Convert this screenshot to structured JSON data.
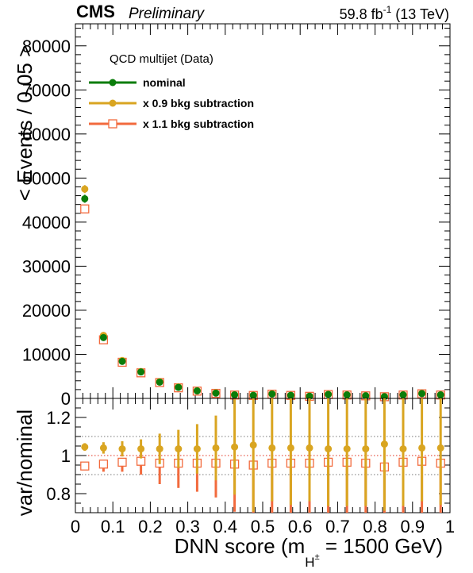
{
  "header": {
    "experiment": "CMS",
    "status": "Preliminary",
    "lumi": "59.8 fb",
    "lumi_exp": "-1",
    "energy": " (13 TeV)"
  },
  "legend": {
    "title": "QCD multijet (Data)",
    "entries": [
      "nominal",
      "x 0.9 bkg subtraction",
      "x 1.1 bkg subtraction"
    ]
  },
  "colors": {
    "nominal": "#0a7d0a",
    "down": "#d9a521",
    "up": "#f26a3d"
  },
  "chart_data": [
    {
      "type": "scatter",
      "panel": "main",
      "ylabel": "< Events / 0.05 >",
      "ylim": [
        0,
        85000
      ],
      "yticks": [
        0,
        10000,
        20000,
        30000,
        40000,
        50000,
        60000,
        70000,
        80000
      ],
      "x": [
        0.025,
        0.075,
        0.125,
        0.175,
        0.225,
        0.275,
        0.325,
        0.375,
        0.425,
        0.475,
        0.525,
        0.575,
        0.625,
        0.675,
        0.725,
        0.775,
        0.825,
        0.875,
        0.925,
        0.975
      ],
      "series": [
        {
          "name": "nominal",
          "values": [
            45300,
            13800,
            8400,
            6000,
            3700,
            2500,
            1700,
            1200,
            800,
            700,
            1000,
            700,
            500,
            900,
            800,
            600,
            400,
            800,
            1100,
            800
          ],
          "errors": [
            900,
            400,
            300,
            250,
            200,
            150,
            120,
            100,
            90,
            80,
            90,
            80,
            70,
            80,
            80,
            70,
            60,
            80,
            90,
            80
          ]
        },
        {
          "name": "x 0.9 bkg subtraction",
          "values": [
            47500,
            14300,
            8600,
            6100,
            3800,
            2600,
            1750,
            1250,
            850,
            730,
            1050,
            720,
            520,
            950,
            830,
            620,
            420,
            830,
            1150,
            830
          ],
          "errors": [
            900,
            400,
            300,
            250,
            200,
            150,
            120,
            100,
            90,
            80,
            90,
            80,
            70,
            80,
            80,
            70,
            60,
            80,
            90,
            80
          ]
        },
        {
          "name": "x 1.1 bkg subtraction",
          "values": [
            43000,
            13300,
            8200,
            5800,
            3600,
            2400,
            1650,
            1150,
            760,
            670,
            960,
            680,
            480,
            870,
            770,
            580,
            380,
            770,
            1050,
            770
          ],
          "errors": [
            900,
            400,
            300,
            250,
            200,
            150,
            120,
            100,
            90,
            80,
            90,
            80,
            70,
            80,
            80,
            70,
            60,
            80,
            90,
            80
          ]
        }
      ]
    },
    {
      "type": "scatter",
      "panel": "ratio",
      "xlabel": "DNN score (m",
      "xlabel_sub": "H",
      "xlabel_sup": "±",
      "xlabel_tail": " = 1500 GeV)",
      "ylabel": "var/nominal",
      "xlim": [
        0,
        1
      ],
      "ylim": [
        0.7,
        1.3
      ],
      "xticks": [
        0,
        0.1,
        0.2,
        0.3,
        0.4,
        0.5,
        0.6,
        0.7,
        0.8,
        0.9,
        1
      ],
      "xtick_labels": [
        "0",
        "0.1",
        "0.2",
        "0.3",
        "0.4",
        "0.5",
        "0.6",
        "0.7",
        "0.8",
        "0.9",
        "1"
      ],
      "yticks": [
        0.8,
        1,
        1.2
      ],
      "ytick_labels": [
        "0.8",
        "1",
        "1.2"
      ],
      "ref_lines": [
        0.9,
        1.0,
        1.1
      ],
      "x": [
        0.025,
        0.075,
        0.125,
        0.175,
        0.225,
        0.275,
        0.325,
        0.375,
        0.425,
        0.475,
        0.525,
        0.575,
        0.625,
        0.675,
        0.725,
        0.775,
        0.825,
        0.875,
        0.925,
        0.975
      ],
      "series": [
        {
          "name": "x 0.9 bkg subtraction",
          "values": [
            1.045,
            1.04,
            1.035,
            1.035,
            1.035,
            1.035,
            1.035,
            1.04,
            1.045,
            1.055,
            1.04,
            1.04,
            1.04,
            1.035,
            1.035,
            1.035,
            1.06,
            1.035,
            1.04,
            1.04
          ],
          "err_low": [
            0.02,
            0.03,
            0.04,
            0.05,
            0.08,
            0.1,
            0.13,
            0.17,
            0.25,
            0.35,
            0.28,
            0.3,
            0.28,
            0.3,
            0.3,
            0.3,
            0.35,
            0.3,
            0.28,
            0.3
          ],
          "err_high": [
            0.02,
            0.03,
            0.04,
            0.05,
            0.08,
            0.1,
            0.13,
            0.17,
            0.25,
            0.35,
            0.28,
            0.3,
            0.28,
            0.3,
            0.3,
            0.3,
            0.35,
            0.3,
            0.28,
            0.3
          ]
        },
        {
          "name": "x 1.1 bkg subtraction",
          "values": [
            0.945,
            0.955,
            0.965,
            0.97,
            0.96,
            0.96,
            0.96,
            0.96,
            0.955,
            0.95,
            0.96,
            0.96,
            0.96,
            0.965,
            0.965,
            0.96,
            0.94,
            0.965,
            0.97,
            0.96
          ],
          "err_low": [
            0.02,
            0.04,
            0.05,
            0.07,
            0.11,
            0.13,
            0.15,
            0.18,
            0.25,
            0.35,
            0.3,
            0.3,
            0.3,
            0.3,
            0.3,
            0.3,
            0.35,
            0.3,
            0.28,
            0.3
          ],
          "err_high": [
            0.02,
            0.02,
            0.02,
            0.02,
            0.02,
            0.02,
            0.02,
            0.02,
            0.02,
            0.02,
            0.02,
            0.02,
            0.02,
            0.02,
            0.02,
            0.02,
            0.02,
            0.02,
            0.02,
            0.02
          ]
        }
      ]
    }
  ]
}
